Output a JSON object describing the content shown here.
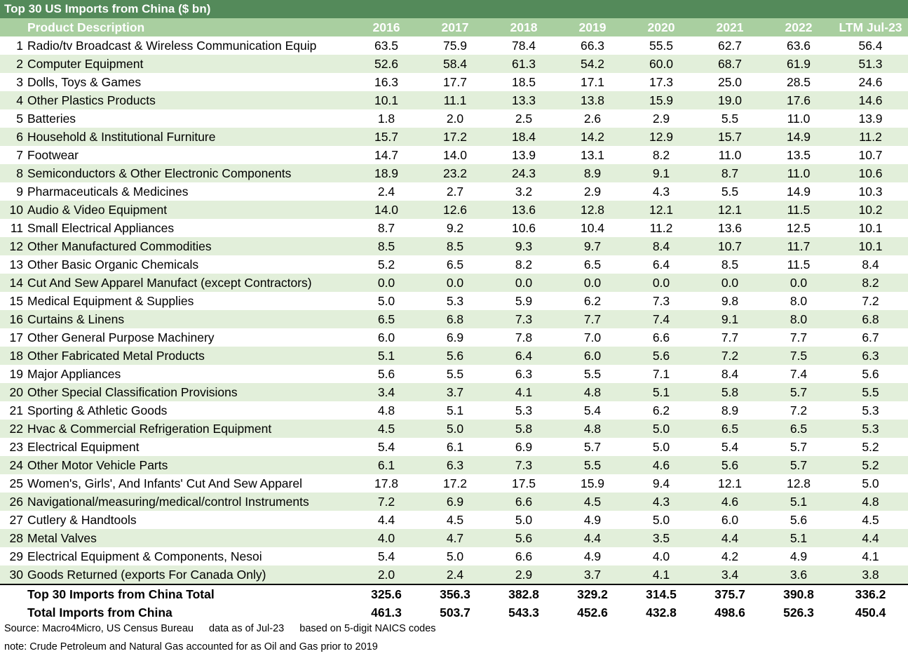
{
  "title": "Top 30 US Imports from China ($ bn)",
  "chart_data": {
    "type": "table",
    "title": "Top 30 US Imports from China ($ bn)",
    "columns": [
      "Product Description",
      "2016",
      "2017",
      "2018",
      "2019",
      "2020",
      "2021",
      "2022",
      "LTM Jul-23"
    ],
    "rows": [
      {
        "rank": "1",
        "desc": "Radio/tv Broadcast & Wireless Communication Equip",
        "values": [
          "63.5",
          "75.9",
          "78.4",
          "66.3",
          "55.5",
          "62.7",
          "63.6",
          "56.4"
        ]
      },
      {
        "rank": "2",
        "desc": "Computer Equipment",
        "values": [
          "52.6",
          "58.4",
          "61.3",
          "54.2",
          "60.0",
          "68.7",
          "61.9",
          "51.3"
        ]
      },
      {
        "rank": "3",
        "desc": "Dolls, Toys & Games",
        "values": [
          "16.3",
          "17.7",
          "18.5",
          "17.1",
          "17.3",
          "25.0",
          "28.5",
          "24.6"
        ]
      },
      {
        "rank": "4",
        "desc": "Other Plastics Products",
        "values": [
          "10.1",
          "11.1",
          "13.3",
          "13.8",
          "15.9",
          "19.0",
          "17.6",
          "14.6"
        ]
      },
      {
        "rank": "5",
        "desc": "Batteries",
        "values": [
          "1.8",
          "2.0",
          "2.5",
          "2.6",
          "2.9",
          "5.5",
          "11.0",
          "13.9"
        ]
      },
      {
        "rank": "6",
        "desc": "Household & Institutional Furniture",
        "values": [
          "15.7",
          "17.2",
          "18.4",
          "14.2",
          "12.9",
          "15.7",
          "14.9",
          "11.2"
        ]
      },
      {
        "rank": "7",
        "desc": "Footwear",
        "values": [
          "14.7",
          "14.0",
          "13.9",
          "13.1",
          "8.2",
          "11.0",
          "13.5",
          "10.7"
        ]
      },
      {
        "rank": "8",
        "desc": "Semiconductors & Other Electronic Components",
        "values": [
          "18.9",
          "23.2",
          "24.3",
          "8.9",
          "9.1",
          "8.7",
          "11.0",
          "10.6"
        ]
      },
      {
        "rank": "9",
        "desc": "Pharmaceuticals & Medicines",
        "values": [
          "2.4",
          "2.7",
          "3.2",
          "2.9",
          "4.3",
          "5.5",
          "14.9",
          "10.3"
        ]
      },
      {
        "rank": "10",
        "desc": "Audio & Video Equipment",
        "values": [
          "14.0",
          "12.6",
          "13.6",
          "12.8",
          "12.1",
          "12.1",
          "11.5",
          "10.2"
        ]
      },
      {
        "rank": "11",
        "desc": "Small Electrical Appliances",
        "values": [
          "8.7",
          "9.2",
          "10.6",
          "10.4",
          "11.2",
          "13.6",
          "12.5",
          "10.1"
        ]
      },
      {
        "rank": "12",
        "desc": "Other Manufactured Commodities",
        "values": [
          "8.5",
          "8.5",
          "9.3",
          "9.7",
          "8.4",
          "10.7",
          "11.7",
          "10.1"
        ]
      },
      {
        "rank": "13",
        "desc": "Other Basic Organic Chemicals",
        "values": [
          "5.2",
          "6.5",
          "8.2",
          "6.5",
          "6.4",
          "8.5",
          "11.5",
          "8.4"
        ]
      },
      {
        "rank": "14",
        "desc": "Cut And Sew Apparel Manufact (except Contractors)",
        "values": [
          "0.0",
          "0.0",
          "0.0",
          "0.0",
          "0.0",
          "0.0",
          "0.0",
          "8.2"
        ]
      },
      {
        "rank": "15",
        "desc": "Medical Equipment & Supplies",
        "values": [
          "5.0",
          "5.3",
          "5.9",
          "6.2",
          "7.3",
          "9.8",
          "8.0",
          "7.2"
        ]
      },
      {
        "rank": "16",
        "desc": "Curtains & Linens",
        "values": [
          "6.5",
          "6.8",
          "7.3",
          "7.7",
          "7.4",
          "9.1",
          "8.0",
          "6.8"
        ]
      },
      {
        "rank": "17",
        "desc": "Other General Purpose Machinery",
        "values": [
          "6.0",
          "6.9",
          "7.8",
          "7.0",
          "6.6",
          "7.7",
          "7.7",
          "6.7"
        ]
      },
      {
        "rank": "18",
        "desc": "Other Fabricated Metal Products",
        "values": [
          "5.1",
          "5.6",
          "6.4",
          "6.0",
          "5.6",
          "7.2",
          "7.5",
          "6.3"
        ]
      },
      {
        "rank": "19",
        "desc": "Major Appliances",
        "values": [
          "5.6",
          "5.5",
          "6.3",
          "5.5",
          "7.1",
          "8.4",
          "7.4",
          "5.6"
        ]
      },
      {
        "rank": "20",
        "desc": "Other Special Classification Provisions",
        "values": [
          "3.4",
          "3.7",
          "4.1",
          "4.8",
          "5.1",
          "5.8",
          "5.7",
          "5.5"
        ]
      },
      {
        "rank": "21",
        "desc": "Sporting & Athletic Goods",
        "values": [
          "4.8",
          "5.1",
          "5.3",
          "5.4",
          "6.2",
          "8.9",
          "7.2",
          "5.3"
        ]
      },
      {
        "rank": "22",
        "desc": "Hvac & Commercial Refrigeration Equipment",
        "values": [
          "4.5",
          "5.0",
          "5.8",
          "4.8",
          "5.0",
          "6.5",
          "6.5",
          "5.3"
        ]
      },
      {
        "rank": "23",
        "desc": "Electrical Equipment",
        "values": [
          "5.4",
          "6.1",
          "6.9",
          "5.7",
          "5.0",
          "5.4",
          "5.7",
          "5.2"
        ]
      },
      {
        "rank": "24",
        "desc": "Other Motor Vehicle Parts",
        "values": [
          "6.1",
          "6.3",
          "7.3",
          "5.5",
          "4.6",
          "5.6",
          "5.7",
          "5.2"
        ]
      },
      {
        "rank": "25",
        "desc": "Women's, Girls', And Infants' Cut And Sew Apparel",
        "values": [
          "17.8",
          "17.2",
          "17.5",
          "15.9",
          "9.4",
          "12.1",
          "12.8",
          "5.0"
        ]
      },
      {
        "rank": "26",
        "desc": "Navigational/measuring/medical/control Instruments",
        "values": [
          "7.2",
          "6.9",
          "6.6",
          "4.5",
          "4.3",
          "4.6",
          "5.1",
          "4.8"
        ]
      },
      {
        "rank": "27",
        "desc": "Cutlery & Handtools",
        "values": [
          "4.4",
          "4.5",
          "5.0",
          "4.9",
          "5.0",
          "6.0",
          "5.6",
          "4.5"
        ]
      },
      {
        "rank": "28",
        "desc": "Metal Valves",
        "values": [
          "4.0",
          "4.7",
          "5.6",
          "4.4",
          "3.5",
          "4.4",
          "5.1",
          "4.4"
        ]
      },
      {
        "rank": "29",
        "desc": "Electrical Equipment & Components, Nesoi",
        "values": [
          "5.4",
          "5.0",
          "6.6",
          "4.9",
          "4.0",
          "4.2",
          "4.9",
          "4.1"
        ]
      },
      {
        "rank": "30",
        "desc": "Goods Returned (exports For Canada Only)",
        "values": [
          "2.0",
          "2.4",
          "2.9",
          "3.7",
          "4.1",
          "3.4",
          "3.6",
          "3.8"
        ]
      }
    ],
    "totals": [
      {
        "desc": "Top 30 Imports from China Total",
        "values": [
          "325.6",
          "356.3",
          "382.8",
          "329.2",
          "314.5",
          "375.7",
          "390.8",
          "336.2"
        ]
      },
      {
        "desc": "Total Imports from China",
        "values": [
          "461.3",
          "503.7",
          "543.3",
          "452.6",
          "432.8",
          "498.6",
          "526.3",
          "450.4"
        ]
      }
    ]
  },
  "footer": {
    "source": "Source: Macro4Micro, US Census Bureau",
    "asof": "data as of Jul-23",
    "basis": "based on 5-digit NAICS codes",
    "note": "note: Crude Petroleum and Natural Gas accounted for as Oil and Gas prior to 2019"
  },
  "colors": {
    "title_bg": "#548a5a",
    "header_bg": "#a9cfa0",
    "stripe_bg": "#e2efda"
  }
}
